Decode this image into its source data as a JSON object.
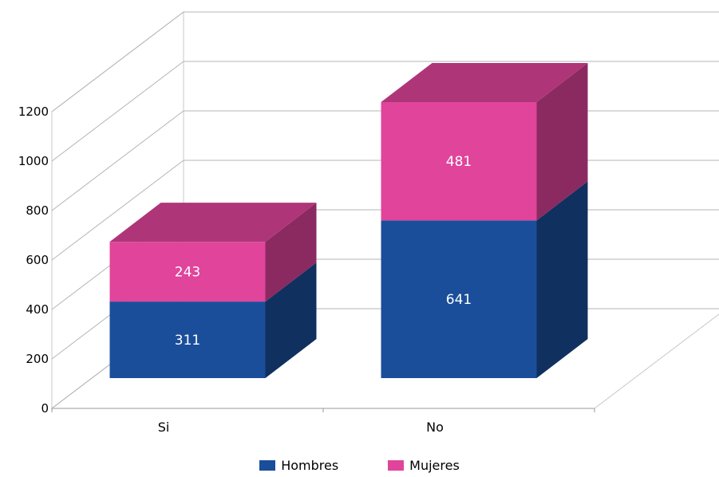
{
  "chart_data": {
    "type": "bar",
    "stacked": true,
    "three_d": true,
    "categories": [
      "Si",
      "No"
    ],
    "series": [
      {
        "name": "Hombres",
        "values": [
          311,
          641
        ],
        "color": "#1a4e9a"
      },
      {
        "name": "Mujeres",
        "values": [
          243,
          481
        ],
        "color": "#e0449b"
      }
    ],
    "y_ticks": [
      "0",
      "200",
      "400",
      "600",
      "800",
      "1000",
      "1200"
    ],
    "ylim": [
      0,
      1200
    ],
    "grid": true,
    "legend_position": "bottom"
  }
}
